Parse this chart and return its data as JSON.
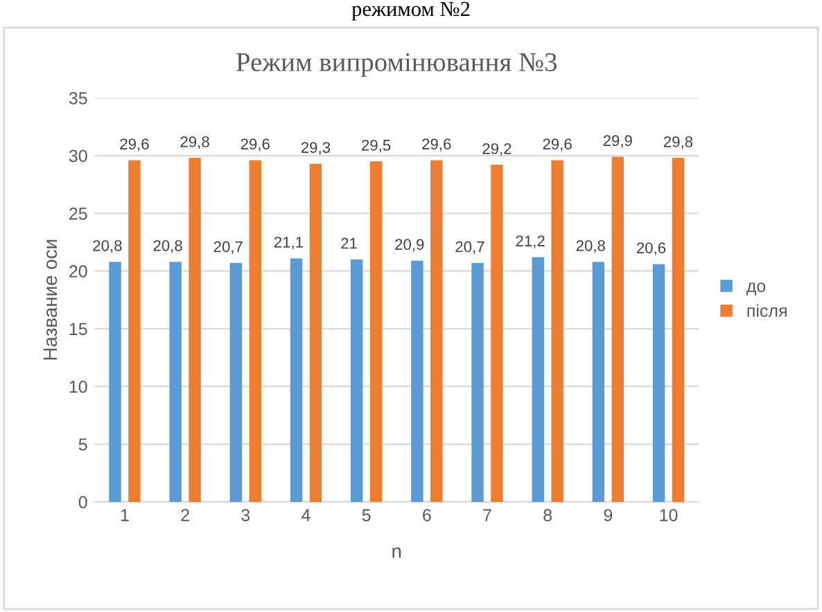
{
  "chart_data": {
    "type": "bar",
    "title": "Режим випромінювання №3",
    "xlabel": "n",
    "ylabel": "Название оси",
    "annotations": [
      "режимом №2"
    ],
    "categories": [
      "1",
      "2",
      "3",
      "4",
      "5",
      "6",
      "7",
      "8",
      "9",
      "10"
    ],
    "series": [
      {
        "name": "до",
        "color": "#5b9bd5",
        "values": [
          20.8,
          20.8,
          20.7,
          21.1,
          21,
          20.9,
          20.7,
          21.2,
          20.8,
          20.6
        ],
        "value_labels": [
          "20,8",
          "20,8",
          "20,7",
          "21,1",
          "21",
          "20,9",
          "20,7",
          "21,2",
          "20,8",
          "20,6"
        ]
      },
      {
        "name": "після",
        "color": "#ed7d31",
        "values": [
          29.6,
          29.8,
          29.6,
          29.3,
          29.5,
          29.6,
          29.2,
          29.6,
          29.9,
          29.8
        ],
        "value_labels": [
          "29,6",
          "29,8",
          "29,6",
          "29,3",
          "29,5",
          "29,6",
          "29,2",
          "29,6",
          "29,9",
          "29,8"
        ]
      }
    ],
    "ylim": [
      0,
      35
    ],
    "yticks": [
      0,
      5,
      10,
      15,
      20,
      25,
      30,
      35
    ],
    "grid": "y",
    "legend": "right"
  }
}
